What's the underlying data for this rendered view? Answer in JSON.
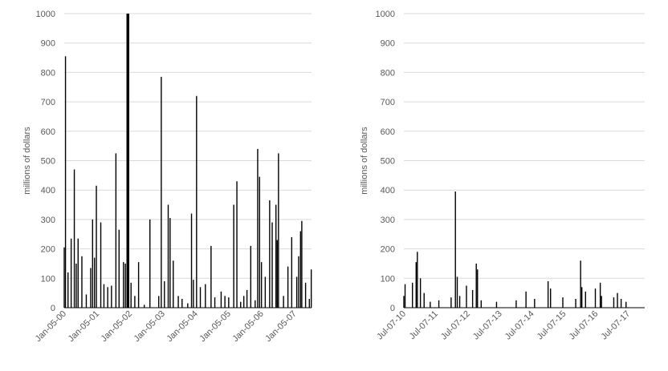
{
  "chart_data": [
    {
      "type": "bar",
      "title": "",
      "xlabel": "",
      "ylabel": "millions of dollars",
      "ylim": [
        0,
        1000
      ],
      "yticks": [
        0,
        100,
        200,
        300,
        400,
        500,
        600,
        700,
        800,
        900,
        1000
      ],
      "x_tick_labels": [
        "Jan-05-00",
        "Jan-05-01",
        "Jan-05-02",
        "Jan-05-03",
        "Jan-05-04",
        "Jan-05-05",
        "Jan-05-06",
        "Jan-05-07"
      ],
      "bar_color": "#000000",
      "grid": true,
      "approximate_points": [
        {
          "x": "Jan-05-00",
          "y": 205
        },
        {
          "x": "Jan-19-00",
          "y": 855
        },
        {
          "x": "Feb-16-00",
          "y": 120
        },
        {
          "x": "Mar-22-00",
          "y": 235
        },
        {
          "x": "Apr-26-00",
          "y": 470
        },
        {
          "x": "May-17-00",
          "y": 150
        },
        {
          "x": "Jun-07-00",
          "y": 235
        },
        {
          "x": "Jul-19-00",
          "y": 175
        },
        {
          "x": "Sep-06-00",
          "y": 45
        },
        {
          "x": "Oct-25-00",
          "y": 135
        },
        {
          "x": "Nov-15-00",
          "y": 300
        },
        {
          "x": "Dec-06-00",
          "y": 170
        },
        {
          "x": "Dec-27-00",
          "y": 415
        },
        {
          "x": "Feb-14-01",
          "y": 290
        },
        {
          "x": "Mar-21-01",
          "y": 80
        },
        {
          "x": "May-02-01",
          "y": 70
        },
        {
          "x": "Jun-13-01",
          "y": 75
        },
        {
          "x": "Aug-01-01",
          "y": 525
        },
        {
          "x": "Sep-05-01",
          "y": 265
        },
        {
          "x": "Oct-24-01",
          "y": 155
        },
        {
          "x": "Nov-14-01",
          "y": 150
        },
        {
          "x": "Dec-12-01",
          "y": 1000
        },
        {
          "x": "Jan-16-02",
          "y": 85
        },
        {
          "x": "Feb-27-02",
          "y": 40
        },
        {
          "x": "Apr-10-02",
          "y": 155
        },
        {
          "x": "Jun-12-02",
          "y": 10
        },
        {
          "x": "Aug-14-02",
          "y": 300
        },
        {
          "x": "Nov-20-02",
          "y": 40
        },
        {
          "x": "Dec-18-02",
          "y": 785
        },
        {
          "x": "Jan-22-03",
          "y": 90
        },
        {
          "x": "Mar-05-03",
          "y": 350
        },
        {
          "x": "Mar-26-03",
          "y": 305
        },
        {
          "x": "Apr-30-03",
          "y": 160
        },
        {
          "x": "Jun-25-03",
          "y": 40
        },
        {
          "x": "Aug-06-03",
          "y": 30
        },
        {
          "x": "Oct-08-03",
          "y": 15
        },
        {
          "x": "Nov-19-03",
          "y": 320
        },
        {
          "x": "Dec-10-03",
          "y": 95
        },
        {
          "x": "Jan-14-04",
          "y": 720
        },
        {
          "x": "Feb-25-04",
          "y": 70
        },
        {
          "x": "Apr-21-04",
          "y": 80
        },
        {
          "x": "Jun-23-04",
          "y": 210
        },
        {
          "x": "Aug-04-04",
          "y": 35
        },
        {
          "x": "Oct-13-04",
          "y": 55
        },
        {
          "x": "Nov-24-04",
          "y": 40
        },
        {
          "x": "Jan-05-05",
          "y": 35
        },
        {
          "x": "Mar-02-05",
          "y": 350
        },
        {
          "x": "Apr-06-05",
          "y": 430
        },
        {
          "x": "May-18-05",
          "y": 20
        },
        {
          "x": "Jun-22-05",
          "y": 40
        },
        {
          "x": "Jul-27-05",
          "y": 60
        },
        {
          "x": "Sep-07-05",
          "y": 210
        },
        {
          "x": "Oct-26-05",
          "y": 25
        },
        {
          "x": "Nov-23-05",
          "y": 540
        },
        {
          "x": "Dec-14-05",
          "y": 445
        },
        {
          "x": "Jan-04-06",
          "y": 155
        },
        {
          "x": "Feb-15-06",
          "y": 105
        },
        {
          "x": "Apr-05-06",
          "y": 365
        },
        {
          "x": "May-03-06",
          "y": 290
        },
        {
          "x": "Jun-14-06",
          "y": 350
        },
        {
          "x": "Jun-28-06",
          "y": 230
        },
        {
          "x": "Jul-12-06",
          "y": 525
        },
        {
          "x": "Sep-06-06",
          "y": 40
        },
        {
          "x": "Oct-25-06",
          "y": 140
        },
        {
          "x": "Dec-06-06",
          "y": 240
        },
        {
          "x": "Jan-31-07",
          "y": 105
        },
        {
          "x": "Feb-21-07",
          "y": 175
        },
        {
          "x": "Mar-14-07",
          "y": 260
        },
        {
          "x": "Mar-28-07",
          "y": 295
        },
        {
          "x": "May-09-07",
          "y": 85
        },
        {
          "x": "Jun-20-07",
          "y": 30
        },
        {
          "x": "Jul-11-07",
          "y": 130
        }
      ]
    },
    {
      "type": "bar",
      "title": "",
      "xlabel": "",
      "ylabel": "millions of dollars",
      "ylim": [
        0,
        1000
      ],
      "yticks": [
        0,
        100,
        200,
        300,
        400,
        500,
        600,
        700,
        800,
        900,
        1000
      ],
      "x_tick_labels": [
        "Jul-07-10",
        "Jul-07-11",
        "Jul-07-12",
        "Jul-07-13",
        "Jul-07-14",
        "Jul-07-15",
        "Jul-07-16",
        "Jul-07-17"
      ],
      "bar_color": "#000000",
      "grid": true,
      "approximate_points": [
        {
          "x": "Jul-07-10",
          "y": 40
        },
        {
          "x": "Jul-21-10",
          "y": 80
        },
        {
          "x": "Oct-13-10",
          "y": 85
        },
        {
          "x": "Nov-24-10",
          "y": 155
        },
        {
          "x": "Dec-08-10",
          "y": 190
        },
        {
          "x": "Jan-12-11",
          "y": 100
        },
        {
          "x": "Feb-23-11",
          "y": 50
        },
        {
          "x": "May-04-11",
          "y": 20
        },
        {
          "x": "Aug-10-11",
          "y": 25
        },
        {
          "x": "Dec-28-11",
          "y": 35
        },
        {
          "x": "Feb-15-12",
          "y": 395
        },
        {
          "x": "Mar-07-12",
          "y": 105
        },
        {
          "x": "Apr-04-12",
          "y": 40
        },
        {
          "x": "Jun-20-12",
          "y": 75
        },
        {
          "x": "Aug-29-12",
          "y": 60
        },
        {
          "x": "Oct-10-12",
          "y": 150
        },
        {
          "x": "Oct-24-12",
          "y": 130
        },
        {
          "x": "Dec-05-12",
          "y": 25
        },
        {
          "x": "May-29-13",
          "y": 20
        },
        {
          "x": "Jan-08-14",
          "y": 25
        },
        {
          "x": "Apr-30-14",
          "y": 55
        },
        {
          "x": "Aug-06-14",
          "y": 30
        },
        {
          "x": "Jan-07-15",
          "y": 90
        },
        {
          "x": "Feb-04-15",
          "y": 65
        },
        {
          "x": "Jun-24-15",
          "y": 35
        },
        {
          "x": "Nov-18-15",
          "y": 30
        },
        {
          "x": "Jan-13-16",
          "y": 160
        },
        {
          "x": "Jan-27-16",
          "y": 70
        },
        {
          "x": "Mar-09-16",
          "y": 55
        },
        {
          "x": "Jun-29-16",
          "y": 65
        },
        {
          "x": "Aug-24-16",
          "y": 85
        },
        {
          "x": "Sep-07-16",
          "y": 40
        },
        {
          "x": "Jan-25-17",
          "y": 35
        },
        {
          "x": "Mar-08-17",
          "y": 50
        },
        {
          "x": "Apr-19-17",
          "y": 30
        },
        {
          "x": "Jun-14-17",
          "y": 20
        }
      ]
    }
  ]
}
